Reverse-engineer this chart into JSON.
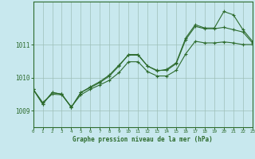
{
  "title": "Graphe pression niveau de la mer (hPa)",
  "bg_color": "#c8e8ee",
  "grid_color": "#9dbfb8",
  "line_color": "#2d6b2d",
  "xlim": [
    0,
    23
  ],
  "ylim": [
    1008.5,
    1012.3
  ],
  "yticks": [
    1009,
    1010,
    1011
  ],
  "xticks": [
    0,
    1,
    2,
    3,
    4,
    5,
    6,
    7,
    8,
    9,
    10,
    11,
    12,
    13,
    14,
    15,
    16,
    17,
    18,
    19,
    20,
    21,
    22,
    23
  ],
  "series1_y": [
    1009.65,
    1009.2,
    1009.55,
    1009.5,
    1009.1,
    1009.55,
    1009.7,
    1009.85,
    1010.05,
    1010.35,
    1010.7,
    1010.7,
    1010.35,
    1010.2,
    1010.25,
    1010.45,
    1011.2,
    1011.6,
    1011.5,
    1011.5,
    1012.0,
    1011.9,
    1011.45,
    1011.1
  ],
  "series2_y": [
    1009.65,
    1009.2,
    1009.55,
    1009.5,
    1009.1,
    1009.55,
    1009.72,
    1009.88,
    1010.08,
    1010.38,
    1010.68,
    1010.68,
    1010.35,
    1010.22,
    1010.22,
    1010.42,
    1011.15,
    1011.55,
    1011.48,
    1011.48,
    1011.52,
    1011.45,
    1011.38,
    1011.05
  ],
  "series3_y": [
    1009.65,
    1009.25,
    1009.5,
    1009.48,
    1009.12,
    1009.48,
    1009.65,
    1009.78,
    1009.92,
    1010.15,
    1010.48,
    1010.48,
    1010.18,
    1010.05,
    1010.05,
    1010.22,
    1010.72,
    1011.1,
    1011.05,
    1011.05,
    1011.08,
    1011.05,
    1011.0,
    1011.0
  ]
}
